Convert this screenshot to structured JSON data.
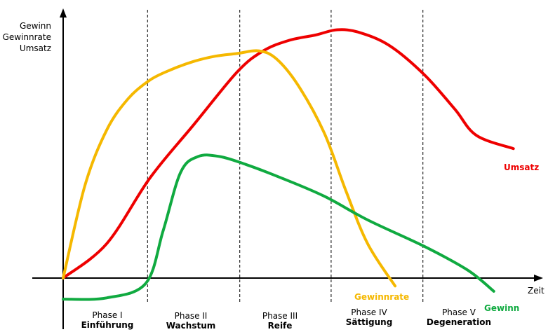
{
  "chart_data": {
    "type": "line",
    "ylabel_lines": [
      "Gewinn",
      "Gewinnrate",
      "Umsatz"
    ],
    "xlabel": "Zeit",
    "xlim": [
      0,
      10
    ],
    "ylim": [
      -1.2,
      10
    ],
    "grid": false,
    "legend": "none",
    "phase_boundaries": [
      1.94,
      4.06,
      6.16,
      8.27
    ],
    "phases": [
      {
        "number": "Phase I",
        "name": "Einführung"
      },
      {
        "number": "Phase II",
        "name": "Wachstum"
      },
      {
        "number": "Phase III",
        "name": "Reife"
      },
      {
        "number": "Phase IV",
        "name": "Sättigung"
      },
      {
        "number": "Phase V",
        "name": "Degeneration"
      }
    ],
    "series": [
      {
        "name": "Umsatz",
        "color": "#ee0000",
        "x": [
          0,
          1,
          2,
          3,
          4,
          4.6,
          5.2,
          5.8,
          6.3,
          6.8,
          7.5,
          8.3,
          9.0,
          9.5,
          10.35
        ],
        "y": [
          0,
          1.3,
          3.8,
          5.8,
          7.8,
          8.6,
          9.0,
          9.2,
          9.4,
          9.3,
          8.8,
          7.7,
          6.4,
          5.4,
          4.9
        ]
      },
      {
        "name": "Gewinnrate",
        "color": "#f5b800",
        "x": [
          0,
          0.5,
          1.0,
          1.5,
          2.0,
          2.5,
          3.0,
          3.5,
          4.0,
          4.5,
          4.9,
          5.4,
          6.0,
          6.5,
          7.0,
          7.63
        ],
        "y": [
          0,
          3.5,
          5.6,
          6.8,
          7.5,
          7.9,
          8.2,
          8.4,
          8.5,
          8.6,
          8.3,
          7.3,
          5.5,
          3.3,
          1.3,
          -0.3
        ]
      },
      {
        "name": "Gewinn",
        "color": "#10aa40",
        "x": [
          0,
          1.0,
          1.9,
          2.3,
          2.7,
          3.1,
          3.6,
          4.2,
          5.0,
          6.0,
          7.0,
          8.3,
          9.3,
          9.9
        ],
        "y": [
          -0.8,
          -0.75,
          -0.2,
          1.8,
          4.0,
          4.6,
          4.6,
          4.3,
          3.8,
          3.1,
          2.2,
          1.2,
          0.3,
          -0.5
        ]
      }
    ]
  }
}
